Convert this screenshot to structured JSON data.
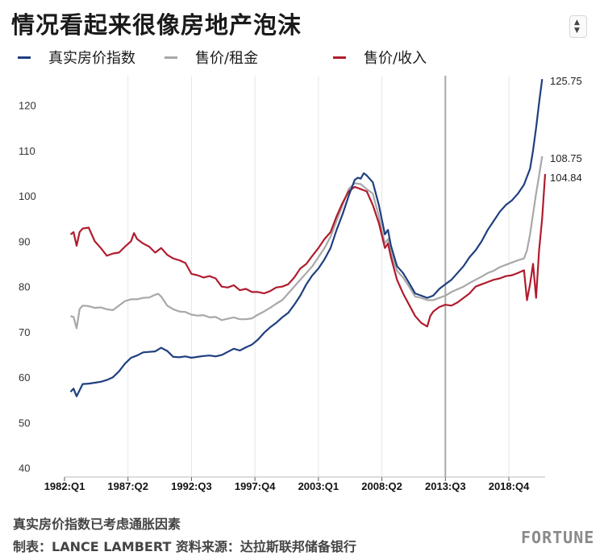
{
  "title": "情况看起来很像房地产泡沫",
  "note": "真实房价指数已考虑通胀因素",
  "source": "制表：LANCE LAMBERT 资料来源：达拉斯联邦储备银行",
  "logo": "FORTUNE",
  "icons": {
    "scroll": "up-down-arrows-icon"
  },
  "chart_data": {
    "type": "line",
    "ylim": [
      38,
      126.5
    ],
    "xlim": [
      1982.0,
      2021.75
    ],
    "yticks": [
      40,
      50,
      60,
      70,
      80,
      90,
      100,
      110,
      120
    ],
    "xticks": [
      {
        "label": "1982:Q1",
        "value": 1982.0
      },
      {
        "label": "1987:Q2",
        "value": 1987.25
      },
      {
        "label": "1992:Q3",
        "value": 1992.5
      },
      {
        "label": "1997:Q4",
        "value": 1997.75
      },
      {
        "label": "2003:Q1",
        "value": 2003.0
      },
      {
        "label": "2008:Q2",
        "value": 2008.25
      },
      {
        "label": "2013:Q3",
        "value": 2013.5
      },
      {
        "label": "2018:Q4",
        "value": 2018.75
      }
    ],
    "grid": "vertical",
    "legend_position": "top",
    "series": [
      {
        "name": "真实房价指数",
        "color": "#1f3f7f",
        "end_label": "125.75",
        "points": [
          [
            1982.5,
            56.8
          ],
          [
            1982.75,
            57.5
          ],
          [
            1983.0,
            55.8
          ],
          [
            1983.5,
            58.5
          ],
          [
            1984.0,
            58.6
          ],
          [
            1984.5,
            58.8
          ],
          [
            1985.0,
            59.0
          ],
          [
            1985.5,
            59.4
          ],
          [
            1986.0,
            60.0
          ],
          [
            1986.5,
            61.3
          ],
          [
            1987.0,
            63.0
          ],
          [
            1987.5,
            64.3
          ],
          [
            1988.0,
            64.8
          ],
          [
            1988.5,
            65.5
          ],
          [
            1989.0,
            65.6
          ],
          [
            1989.5,
            65.7
          ],
          [
            1990.0,
            66.5
          ],
          [
            1990.5,
            65.8
          ],
          [
            1991.0,
            64.5
          ],
          [
            1991.5,
            64.4
          ],
          [
            1992.0,
            64.6
          ],
          [
            1992.5,
            64.3
          ],
          [
            1993.0,
            64.5
          ],
          [
            1993.5,
            64.7
          ],
          [
            1994.0,
            64.8
          ],
          [
            1994.5,
            64.6
          ],
          [
            1995.0,
            64.9
          ],
          [
            1995.5,
            65.6
          ],
          [
            1996.0,
            66.3
          ],
          [
            1996.5,
            65.9
          ],
          [
            1997.0,
            66.6
          ],
          [
            1997.5,
            67.2
          ],
          [
            1998.0,
            68.3
          ],
          [
            1998.5,
            69.8
          ],
          [
            1999.0,
            71.0
          ],
          [
            1999.5,
            72.0
          ],
          [
            2000.0,
            73.2
          ],
          [
            2000.5,
            74.2
          ],
          [
            2001.0,
            76.0
          ],
          [
            2001.5,
            78.0
          ],
          [
            2002.0,
            80.5
          ],
          [
            2002.5,
            82.5
          ],
          [
            2003.0,
            84.0
          ],
          [
            2003.5,
            86.0
          ],
          [
            2004.0,
            88.5
          ],
          [
            2004.5,
            92.5
          ],
          [
            2005.0,
            96.0
          ],
          [
            2005.5,
            100.0
          ],
          [
            2006.0,
            103.5
          ],
          [
            2006.25,
            104.0
          ],
          [
            2006.5,
            103.8
          ],
          [
            2006.75,
            105.0
          ],
          [
            2007.0,
            104.5
          ],
          [
            2007.5,
            103.0
          ],
          [
            2008.0,
            98.0
          ],
          [
            2008.5,
            91.5
          ],
          [
            2008.75,
            92.5
          ],
          [
            2009.0,
            89.0
          ],
          [
            2009.5,
            84.5
          ],
          [
            2010.0,
            83.0
          ],
          [
            2010.5,
            80.8
          ],
          [
            2011.0,
            78.5
          ],
          [
            2011.5,
            78.0
          ],
          [
            2012.0,
            77.5
          ],
          [
            2012.5,
            78.0
          ],
          [
            2013.0,
            79.5
          ],
          [
            2013.5,
            80.5
          ],
          [
            2014.0,
            81.5
          ],
          [
            2014.5,
            83.0
          ],
          [
            2015.0,
            84.5
          ],
          [
            2015.5,
            86.5
          ],
          [
            2016.0,
            88.0
          ],
          [
            2016.5,
            90.0
          ],
          [
            2017.0,
            92.5
          ],
          [
            2017.5,
            94.5
          ],
          [
            2018.0,
            96.5
          ],
          [
            2018.5,
            98.0
          ],
          [
            2019.0,
            99.0
          ],
          [
            2019.5,
            100.5
          ],
          [
            2020.0,
            102.5
          ],
          [
            2020.5,
            106.0
          ],
          [
            2020.75,
            110.0
          ],
          [
            2021.0,
            115.0
          ],
          [
            2021.25,
            120.5
          ],
          [
            2021.5,
            125.75
          ]
        ]
      },
      {
        "name": "售价/租金",
        "color": "#a8a8a8",
        "end_label": "108.75",
        "points": [
          [
            1982.5,
            73.5
          ],
          [
            1982.75,
            73.3
          ],
          [
            1983.0,
            70.8
          ],
          [
            1983.25,
            75.0
          ],
          [
            1983.5,
            75.8
          ],
          [
            1984.0,
            75.7
          ],
          [
            1984.5,
            75.3
          ],
          [
            1985.0,
            75.4
          ],
          [
            1985.5,
            75.0
          ],
          [
            1986.0,
            74.8
          ],
          [
            1986.5,
            75.8
          ],
          [
            1987.0,
            76.8
          ],
          [
            1987.5,
            77.2
          ],
          [
            1988.0,
            77.2
          ],
          [
            1988.5,
            77.5
          ],
          [
            1989.0,
            77.6
          ],
          [
            1989.5,
            78.2
          ],
          [
            1989.75,
            78.4
          ],
          [
            1990.0,
            77.8
          ],
          [
            1990.5,
            75.8
          ],
          [
            1991.0,
            75.0
          ],
          [
            1991.5,
            74.5
          ],
          [
            1992.0,
            74.4
          ],
          [
            1992.5,
            73.8
          ],
          [
            1993.0,
            73.6
          ],
          [
            1993.5,
            73.7
          ],
          [
            1994.0,
            73.2
          ],
          [
            1994.5,
            73.3
          ],
          [
            1995.0,
            72.6
          ],
          [
            1995.5,
            72.9
          ],
          [
            1996.0,
            73.2
          ],
          [
            1996.5,
            72.8
          ],
          [
            1997.0,
            72.8
          ],
          [
            1997.5,
            73.0
          ],
          [
            1998.0,
            73.8
          ],
          [
            1998.5,
            74.5
          ],
          [
            1999.0,
            75.3
          ],
          [
            1999.5,
            76.2
          ],
          [
            2000.0,
            77.0
          ],
          [
            2000.5,
            78.5
          ],
          [
            2001.0,
            80.0
          ],
          [
            2001.5,
            81.5
          ],
          [
            2002.0,
            83.0
          ],
          [
            2002.5,
            84.5
          ],
          [
            2003.0,
            86.5
          ],
          [
            2003.5,
            88.5
          ],
          [
            2004.0,
            91.0
          ],
          [
            2004.5,
            94.5
          ],
          [
            2005.0,
            98.0
          ],
          [
            2005.5,
            101.5
          ],
          [
            2006.0,
            102.8
          ],
          [
            2006.5,
            102.6
          ],
          [
            2007.0,
            101.5
          ],
          [
            2007.5,
            100.5
          ],
          [
            2008.0,
            95.5
          ],
          [
            2008.5,
            89.5
          ],
          [
            2008.75,
            90.5
          ],
          [
            2009.0,
            87.5
          ],
          [
            2009.5,
            83.5
          ],
          [
            2010.0,
            82.0
          ],
          [
            2010.5,
            80.0
          ],
          [
            2011.0,
            77.8
          ],
          [
            2011.5,
            77.5
          ],
          [
            2012.0,
            77.0
          ],
          [
            2012.5,
            77.0
          ],
          [
            2013.0,
            77.5
          ],
          [
            2013.5,
            78.0
          ],
          [
            2014.0,
            78.8
          ],
          [
            2014.5,
            79.4
          ],
          [
            2015.0,
            80.0
          ],
          [
            2015.5,
            80.8
          ],
          [
            2016.0,
            81.5
          ],
          [
            2016.5,
            82.2
          ],
          [
            2017.0,
            83.0
          ],
          [
            2017.5,
            83.5
          ],
          [
            2018.0,
            84.3
          ],
          [
            2018.5,
            84.8
          ],
          [
            2019.0,
            85.3
          ],
          [
            2019.5,
            85.8
          ],
          [
            2020.0,
            86.2
          ],
          [
            2020.25,
            88.0
          ],
          [
            2020.5,
            91.5
          ],
          [
            2020.75,
            96.0
          ],
          [
            2021.0,
            100.5
          ],
          [
            2021.25,
            104.5
          ],
          [
            2021.5,
            108.75
          ]
        ]
      },
      {
        "name": "售价/收入",
        "color": "#b01c2e",
        "end_label": "104.84",
        "points": [
          [
            1982.5,
            91.5
          ],
          [
            1982.75,
            92.0
          ],
          [
            1983.0,
            89.0
          ],
          [
            1983.25,
            92.0
          ],
          [
            1983.5,
            92.8
          ],
          [
            1984.0,
            93.0
          ],
          [
            1984.5,
            90.0
          ],
          [
            1985.0,
            88.5
          ],
          [
            1985.5,
            86.8
          ],
          [
            1986.0,
            87.3
          ],
          [
            1986.5,
            87.5
          ],
          [
            1987.0,
            88.8
          ],
          [
            1987.5,
            90.0
          ],
          [
            1987.75,
            91.8
          ],
          [
            1988.0,
            90.5
          ],
          [
            1988.5,
            89.5
          ],
          [
            1989.0,
            88.8
          ],
          [
            1989.5,
            87.5
          ],
          [
            1990.0,
            88.5
          ],
          [
            1990.5,
            87.0
          ],
          [
            1991.0,
            86.2
          ],
          [
            1991.5,
            85.8
          ],
          [
            1992.0,
            85.2
          ],
          [
            1992.5,
            82.8
          ],
          [
            1993.0,
            82.5
          ],
          [
            1993.5,
            82.0
          ],
          [
            1994.0,
            82.3
          ],
          [
            1994.5,
            81.8
          ],
          [
            1995.0,
            80.0
          ],
          [
            1995.5,
            79.8
          ],
          [
            1996.0,
            80.3
          ],
          [
            1996.5,
            79.2
          ],
          [
            1997.0,
            79.5
          ],
          [
            1997.5,
            78.8
          ],
          [
            1998.0,
            78.8
          ],
          [
            1998.5,
            78.5
          ],
          [
            1999.0,
            79.0
          ],
          [
            1999.5,
            79.8
          ],
          [
            2000.0,
            80.0
          ],
          [
            2000.5,
            80.5
          ],
          [
            2001.0,
            82.0
          ],
          [
            2001.5,
            84.0
          ],
          [
            2002.0,
            85.0
          ],
          [
            2002.5,
            86.8
          ],
          [
            2003.0,
            88.5
          ],
          [
            2003.5,
            90.5
          ],
          [
            2004.0,
            92.0
          ],
          [
            2004.5,
            95.5
          ],
          [
            2005.0,
            98.5
          ],
          [
            2005.5,
            101.0
          ],
          [
            2006.0,
            102.0
          ],
          [
            2006.5,
            101.5
          ],
          [
            2007.0,
            101.0
          ],
          [
            2007.5,
            98.0
          ],
          [
            2008.0,
            94.0
          ],
          [
            2008.5,
            88.5
          ],
          [
            2008.75,
            89.5
          ],
          [
            2009.0,
            86.5
          ],
          [
            2009.5,
            81.5
          ],
          [
            2010.0,
            78.5
          ],
          [
            2010.5,
            76.0
          ],
          [
            2011.0,
            73.5
          ],
          [
            2011.5,
            72.0
          ],
          [
            2012.0,
            71.2
          ],
          [
            2012.25,
            73.5
          ],
          [
            2012.5,
            74.5
          ],
          [
            2013.0,
            75.5
          ],
          [
            2013.5,
            76.0
          ],
          [
            2014.0,
            75.8
          ],
          [
            2014.5,
            76.5
          ],
          [
            2015.0,
            77.5
          ],
          [
            2015.5,
            78.5
          ],
          [
            2016.0,
            80.0
          ],
          [
            2016.5,
            80.5
          ],
          [
            2017.0,
            81.0
          ],
          [
            2017.5,
            81.5
          ],
          [
            2018.0,
            81.8
          ],
          [
            2018.5,
            82.3
          ],
          [
            2019.0,
            82.5
          ],
          [
            2019.5,
            83.0
          ],
          [
            2020.0,
            83.6
          ],
          [
            2020.25,
            77.0
          ],
          [
            2020.5,
            80.5
          ],
          [
            2020.75,
            85.0
          ],
          [
            2021.0,
            77.5
          ],
          [
            2021.25,
            88.0
          ],
          [
            2021.5,
            95.0
          ],
          [
            2021.75,
            104.84
          ]
        ]
      }
    ]
  }
}
